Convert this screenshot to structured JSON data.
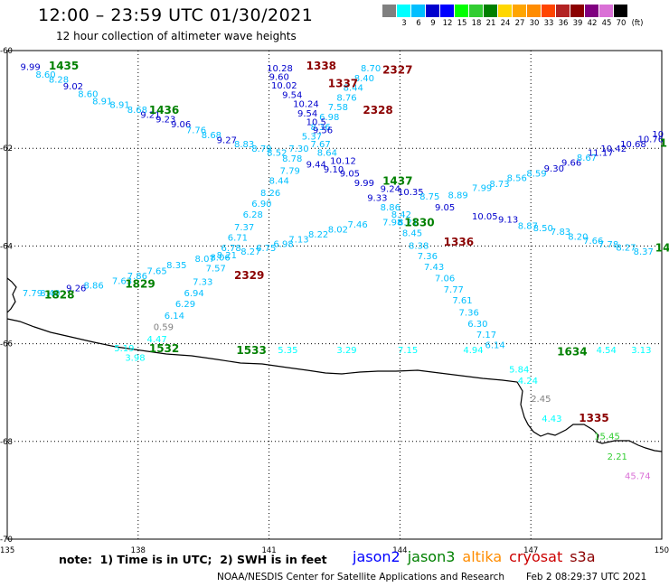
{
  "header": {
    "title": "12:00 – 23:59 UTC 01/30/2021",
    "subtitle": "12 hour collection of altimeter wave heights"
  },
  "legend": {
    "unit": "(ft)",
    "bins": [
      {
        "label": "",
        "color": "#808080"
      },
      {
        "label": "3",
        "color": "#00ffff"
      },
      {
        "label": "6",
        "color": "#00bfff"
      },
      {
        "label": "9",
        "color": "#0000cd"
      },
      {
        "label": "12",
        "color": "#0000ff"
      },
      {
        "label": "15",
        "color": "#00ff00"
      },
      {
        "label": "18",
        "color": "#32cd32"
      },
      {
        "label": "21",
        "color": "#008000"
      },
      {
        "label": "24",
        "color": "#ffd700"
      },
      {
        "label": "27",
        "color": "#ffa500"
      },
      {
        "label": "30",
        "color": "#ff8c00"
      },
      {
        "label": "33",
        "color": "#ff4500"
      },
      {
        "label": "36",
        "color": "#b22222"
      },
      {
        "label": "39",
        "color": "#8b0000"
      },
      {
        "label": "42",
        "color": "#800080"
      },
      {
        "label": "45",
        "color": "#da70d6"
      },
      {
        "label": "70",
        "color": "#000000"
      }
    ]
  },
  "map": {
    "lon_range": [
      135,
      150
    ],
    "lat_range": [
      -70,
      -60
    ],
    "lon_ticks": [
      "135",
      "138",
      "141",
      "144",
      "147",
      "150"
    ],
    "lat_ticks": [
      "-60",
      "-62",
      "-64",
      "-66",
      "-68",
      "-70"
    ]
  },
  "point_labels": {
    "text_rows": [
      {
        "text": "9.99",
        "color": "#0000cd",
        "lon": 135.3,
        "lat": -60.32
      },
      {
        "text": "8.60",
        "color": "#00bfff",
        "lon": 135.65,
        "lat": -60.48
      },
      {
        "text": "8.28",
        "color": "#00bfff",
        "lon": 135.95,
        "lat": -60.58
      },
      {
        "text": "9.02",
        "color": "#0000cd",
        "lon": 136.28,
        "lat": -60.72
      },
      {
        "text": "8.60",
        "color": "#00bfff",
        "lon": 136.62,
        "lat": -60.88
      },
      {
        "text": "8.91",
        "color": "#00bfff",
        "lon": 136.95,
        "lat": -61.03
      },
      {
        "text": "8.91",
        "color": "#00bfff",
        "lon": 137.35,
        "lat": -61.1
      },
      {
        "text": "8.68",
        "color": "#00bfff",
        "lon": 137.75,
        "lat": -61.2
      },
      {
        "text": "9.21",
        "color": "#0000cd",
        "lon": 138.05,
        "lat": -61.3
      },
      {
        "text": "9.23",
        "color": "#0000cd",
        "lon": 138.4,
        "lat": -61.4
      },
      {
        "text": "9.06",
        "color": "#0000cd",
        "lon": 138.75,
        "lat": -61.5
      },
      {
        "text": "7.76",
        "color": "#00bfff",
        "lon": 139.1,
        "lat": -61.62
      },
      {
        "text": "8.68",
        "color": "#00bfff",
        "lon": 139.45,
        "lat": -61.72
      },
      {
        "text": "9.27",
        "color": "#0000cd",
        "lon": 139.8,
        "lat": -61.82
      },
      {
        "text": "8.83",
        "color": "#00bfff",
        "lon": 140.2,
        "lat": -61.9
      },
      {
        "text": "8.79",
        "color": "#00bfff",
        "lon": 140.6,
        "lat": -62.0
      },
      {
        "text": "8.52",
        "color": "#00bfff",
        "lon": 140.95,
        "lat": -62.08
      },
      {
        "text": "8.78",
        "color": "#00bfff",
        "lon": 141.3,
        "lat": -62.2
      },
      {
        "text": "9.44",
        "color": "#0000cd",
        "lon": 141.85,
        "lat": -62.32
      },
      {
        "text": "9.10",
        "color": "#0000cd",
        "lon": 142.25,
        "lat": -62.42
      },
      {
        "text": "9.05",
        "color": "#0000cd",
        "lon": 142.62,
        "lat": -62.5
      },
      {
        "text": "9.99",
        "color": "#0000cd",
        "lon": 142.95,
        "lat": -62.7
      },
      {
        "text": "9.33",
        "color": "#0000cd",
        "lon": 143.25,
        "lat": -63.0
      },
      {
        "text": "8.86",
        "color": "#00bfff",
        "lon": 143.55,
        "lat": -63.2
      },
      {
        "text": "8.42",
        "color": "#00bfff",
        "lon": 143.8,
        "lat": -63.35
      },
      {
        "text": "7.98",
        "color": "#00bfff",
        "lon": 143.6,
        "lat": -63.5
      },
      {
        "text": "8.21",
        "color": "#00bfff",
        "lon": 143.95,
        "lat": -63.5
      },
      {
        "text": "8.45",
        "color": "#00bfff",
        "lon": 144.05,
        "lat": -63.72
      },
      {
        "text": "8.38",
        "color": "#00bfff",
        "lon": 144.2,
        "lat": -63.98
      },
      {
        "text": "7.36",
        "color": "#00bfff",
        "lon": 144.4,
        "lat": -64.2
      },
      {
        "text": "7.43",
        "color": "#00bfff",
        "lon": 144.55,
        "lat": -64.42
      },
      {
        "text": "7.06",
        "color": "#00bfff",
        "lon": 144.8,
        "lat": -64.65
      },
      {
        "text": "7.77",
        "color": "#00bfff",
        "lon": 145.0,
        "lat": -64.88
      },
      {
        "text": "7.61",
        "color": "#00bfff",
        "lon": 145.2,
        "lat": -65.1
      },
      {
        "text": "7.36",
        "color": "#00bfff",
        "lon": 145.35,
        "lat": -65.35
      },
      {
        "text": "6.30",
        "color": "#00bfff",
        "lon": 145.55,
        "lat": -65.58
      },
      {
        "text": "7.17",
        "color": "#00bfff",
        "lon": 145.75,
        "lat": -65.8
      },
      {
        "text": "6.14",
        "color": "#00bfff",
        "lon": 145.95,
        "lat": -66.02
      },
      {
        "text": "5.84",
        "color": "#00ffff",
        "lon": 146.5,
        "lat": -66.52
      },
      {
        "text": "4.24",
        "color": "#00ffff",
        "lon": 146.7,
        "lat": -66.75
      },
      {
        "text": "2.45",
        "color": "#808080",
        "lon": 147.0,
        "lat": -67.12
      },
      {
        "text": "4.43",
        "color": "#00ffff",
        "lon": 147.25,
        "lat": -67.52
      },
      {
        "text": "8.70",
        "color": "#00bfff",
        "lon": 143.1,
        "lat": -60.35
      },
      {
        "text": "8.40",
        "color": "#00bfff",
        "lon": 142.95,
        "lat": -60.55
      },
      {
        "text": "8.44",
        "color": "#00bfff",
        "lon": 142.7,
        "lat": -60.75
      },
      {
        "text": "8.76",
        "color": "#00bfff",
        "lon": 142.55,
        "lat": -60.95
      },
      {
        "text": "7.58",
        "color": "#00bfff",
        "lon": 142.35,
        "lat": -61.15
      },
      {
        "text": "6.98",
        "color": "#00bfff",
        "lon": 142.15,
        "lat": -61.35
      },
      {
        "text": "8.36",
        "color": "#00bfff",
        "lon": 141.95,
        "lat": -61.55
      },
      {
        "text": "5.37",
        "color": "#00bfff",
        "lon": 141.75,
        "lat": -61.75
      },
      {
        "text": "7.67",
        "color": "#00bfff",
        "lon": 141.95,
        "lat": -61.9
      },
      {
        "text": "7.30",
        "color": "#00bfff",
        "lon": 141.45,
        "lat": -62.0
      },
      {
        "text": "8.64",
        "color": "#00bfff",
        "lon": 142.1,
        "lat": -62.08
      },
      {
        "text": "7.79",
        "color": "#00bfff",
        "lon": 141.25,
        "lat": -62.45
      },
      {
        "text": "8.44",
        "color": "#00bfff",
        "lon": 141.0,
        "lat": -62.65
      },
      {
        "text": "8.26",
        "color": "#00bfff",
        "lon": 140.8,
        "lat": -62.9
      },
      {
        "text": "6.90",
        "color": "#00bfff",
        "lon": 140.6,
        "lat": -63.12
      },
      {
        "text": "6.28",
        "color": "#00bfff",
        "lon": 140.4,
        "lat": -63.35
      },
      {
        "text": "7.37",
        "color": "#00bfff",
        "lon": 140.2,
        "lat": -63.6
      },
      {
        "text": "6.71",
        "color": "#00bfff",
        "lon": 140.05,
        "lat": -63.82
      },
      {
        "text": "6.78",
        "color": "#00bfff",
        "lon": 139.9,
        "lat": -64.03
      },
      {
        "text": "8.06",
        "color": "#00bfff",
        "lon": 139.65,
        "lat": -64.22
      },
      {
        "text": "7.57",
        "color": "#00bfff",
        "lon": 139.55,
        "lat": -64.45
      },
      {
        "text": "7.33",
        "color": "#00bfff",
        "lon": 139.25,
        "lat": -64.72
      },
      {
        "text": "6.94",
        "color": "#00bfff",
        "lon": 139.05,
        "lat": -64.95
      },
      {
        "text": "6.29",
        "color": "#00bfff",
        "lon": 138.85,
        "lat": -65.18
      },
      {
        "text": "6.14",
        "color": "#00bfff",
        "lon": 138.6,
        "lat": -65.42
      },
      {
        "text": "0.59",
        "color": "#808080",
        "lon": 138.35,
        "lat": -65.65
      },
      {
        "text": "4.47",
        "color": "#00ffff",
        "lon": 138.2,
        "lat": -65.9
      },
      {
        "text": "3.98",
        "color": "#00ffff",
        "lon": 137.7,
        "lat": -66.28
      },
      {
        "text": "10.28",
        "color": "#0000cd",
        "lon": 140.95,
        "lat": -60.35
      },
      {
        "text": "9.60",
        "color": "#0000cd",
        "lon": 141.0,
        "lat": -60.53
      },
      {
        "text": "10.02",
        "color": "#0000cd",
        "lon": 141.05,
        "lat": -60.7
      },
      {
        "text": "9.54",
        "color": "#0000cd",
        "lon": 141.3,
        "lat": -60.9
      },
      {
        "text": "10.24",
        "color": "#0000cd",
        "lon": 141.55,
        "lat": -61.08
      },
      {
        "text": "9.54",
        "color": "#0000cd",
        "lon": 141.65,
        "lat": -61.28
      },
      {
        "text": "10.5",
        "color": "#0000cd",
        "lon": 141.85,
        "lat": -61.45
      },
      {
        "text": "9.56",
        "color": "#0000cd",
        "lon": 142.0,
        "lat": -61.62
      },
      {
        "text": "10.12",
        "color": "#0000cd",
        "lon": 142.4,
        "lat": -62.25
      },
      {
        "text": "10.35",
        "color": "#0000cd",
        "lon": 143.95,
        "lat": -62.88
      },
      {
        "text": "9.05",
        "color": "#0000cd",
        "lon": 144.8,
        "lat": -63.2
      },
      {
        "text": "10.05",
        "color": "#0000cd",
        "lon": 145.65,
        "lat": -63.38
      },
      {
        "text": "9.13",
        "color": "#0000cd",
        "lon": 146.25,
        "lat": -63.45
      },
      {
        "text": "8.87",
        "color": "#00bfff",
        "lon": 146.7,
        "lat": -63.58
      },
      {
        "text": "8.50",
        "color": "#00bfff",
        "lon": 147.05,
        "lat": -63.62
      },
      {
        "text": "7.83",
        "color": "#00bfff",
        "lon": 147.45,
        "lat": -63.7
      },
      {
        "text": "8.20",
        "color": "#00bfff",
        "lon": 147.85,
        "lat": -63.8
      },
      {
        "text": "7.66",
        "color": "#00bfff",
        "lon": 148.2,
        "lat": -63.88
      },
      {
        "text": "7.78",
        "color": "#00bfff",
        "lon": 148.55,
        "lat": -63.96
      },
      {
        "text": "8.27",
        "color": "#00bfff",
        "lon": 148.95,
        "lat": -64.02
      },
      {
        "text": "8.37",
        "color": "#00bfff",
        "lon": 149.35,
        "lat": -64.1
      },
      {
        "text": "9.24",
        "color": "#0000cd",
        "lon": 143.55,
        "lat": -62.82
      },
      {
        "text": "8.75",
        "color": "#00bfff",
        "lon": 144.45,
        "lat": -62.98
      },
      {
        "text": "8.89",
        "color": "#00bfff",
        "lon": 145.1,
        "lat": -62.95
      },
      {
        "text": "7.99",
        "color": "#00bfff",
        "lon": 145.65,
        "lat": -62.8
      },
      {
        "text": "8.73",
        "color": "#00bfff",
        "lon": 146.05,
        "lat": -62.72
      },
      {
        "text": "8.56",
        "color": "#00bfff",
        "lon": 146.45,
        "lat": -62.6
      },
      {
        "text": "8.59",
        "color": "#00bfff",
        "lon": 146.9,
        "lat": -62.5
      },
      {
        "text": "9.30",
        "color": "#0000cd",
        "lon": 147.3,
        "lat": -62.4
      },
      {
        "text": "9.66",
        "color": "#0000cd",
        "lon": 147.7,
        "lat": -62.28
      },
      {
        "text": "8.67",
        "color": "#00bfff",
        "lon": 148.05,
        "lat": -62.18
      },
      {
        "text": "11.17",
        "color": "#0000cd",
        "lon": 148.3,
        "lat": -62.08
      },
      {
        "text": "10.42",
        "color": "#0000cd",
        "lon": 148.6,
        "lat": -62.0
      },
      {
        "text": "10.68",
        "color": "#0000cd",
        "lon": 149.05,
        "lat": -61.9
      },
      {
        "text": "10.76",
        "color": "#0000cd",
        "lon": 149.45,
        "lat": -61.8
      },
      {
        "text": "10",
        "color": "#0000cd",
        "lon": 149.78,
        "lat": -61.7
      },
      {
        "text": "7.13",
        "color": "#00bfff",
        "lon": 141.45,
        "lat": -63.85
      },
      {
        "text": "8.22",
        "color": "#00bfff",
        "lon": 141.9,
        "lat": -63.75
      },
      {
        "text": "8.02",
        "color": "#00bfff",
        "lon": 142.35,
        "lat": -63.65
      },
      {
        "text": "7.46",
        "color": "#00bfff",
        "lon": 142.8,
        "lat": -63.55
      },
      {
        "text": "6.98",
        "color": "#00bfff",
        "lon": 141.1,
        "lat": -63.95
      },
      {
        "text": "6.75",
        "color": "#00bfff",
        "lon": 140.7,
        "lat": -64.03
      },
      {
        "text": "8.27",
        "color": "#00bfff",
        "lon": 140.35,
        "lat": -64.1
      },
      {
        "text": "8.21",
        "color": "#00bfff",
        "lon": 139.8,
        "lat": -64.18
      },
      {
        "text": "8.07",
        "color": "#00bfff",
        "lon": 139.3,
        "lat": -64.25
      },
      {
        "text": "8.35",
        "color": "#00bfff",
        "lon": 138.65,
        "lat": -64.38
      },
      {
        "text": "7.65",
        "color": "#00bfff",
        "lon": 138.2,
        "lat": -64.5
      },
      {
        "text": "7.86",
        "color": "#00bfff",
        "lon": 137.75,
        "lat": -64.6
      },
      {
        "text": "7.63",
        "color": "#00bfff",
        "lon": 137.4,
        "lat": -64.7
      },
      {
        "text": "8.86",
        "color": "#00bfff",
        "lon": 136.75,
        "lat": -64.8
      },
      {
        "text": "9.26",
        "color": "#0000cd",
        "lon": 136.35,
        "lat": -64.85
      },
      {
        "text": "7.79",
        "color": "#00bfff",
        "lon": 135.35,
        "lat": -64.95
      },
      {
        "text": "8.40",
        "color": "#00bfff",
        "lon": 135.75,
        "lat": -64.95
      },
      {
        "text": "5.19",
        "color": "#00ffff",
        "lon": 137.45,
        "lat": -66.08
      },
      {
        "text": "5.35",
        "color": "#00ffff",
        "lon": 141.2,
        "lat": -66.12
      },
      {
        "text": "3.29",
        "color": "#00ffff",
        "lon": 142.55,
        "lat": -66.12
      },
      {
        "text": "7.15",
        "color": "#00ffff",
        "lon": 143.95,
        "lat": -66.12
      },
      {
        "text": "4.94",
        "color": "#00ffff",
        "lon": 145.45,
        "lat": -66.12
      },
      {
        "text": "4.54",
        "color": "#00ffff",
        "lon": 148.5,
        "lat": -66.12
      },
      {
        "text": "3.13",
        "color": "#00ffff",
        "lon": 149.3,
        "lat": -66.12
      },
      {
        "text": "15.45",
        "color": "#32cd32",
        "lon": 148.45,
        "lat": -67.88
      },
      {
        "text": "2.21",
        "color": "#32cd32",
        "lon": 148.75,
        "lat": -68.3
      },
      {
        "text": "45.74",
        "color": "#da70d6",
        "lon": 149.15,
        "lat": -68.7
      }
    ],
    "pass_ids": [
      {
        "text": "1435",
        "color": "#008000",
        "lon": 135.95,
        "lat": -60.3
      },
      {
        "text": "1436",
        "color": "#008000",
        "lon": 138.25,
        "lat": -61.2
      },
      {
        "text": "1338",
        "color": "#8b0000",
        "lon": 141.85,
        "lat": -60.3
      },
      {
        "text": "1337",
        "color": "#8b0000",
        "lon": 142.35,
        "lat": -60.66
      },
      {
        "text": "2327",
        "color": "#8b0000",
        "lon": 143.6,
        "lat": -60.38
      },
      {
        "text": "2328",
        "color": "#8b0000",
        "lon": 143.15,
        "lat": -61.2
      },
      {
        "text": "1437",
        "color": "#008000",
        "lon": 143.6,
        "lat": -62.65
      },
      {
        "text": "1830",
        "color": "#008000",
        "lon": 144.1,
        "lat": -63.5
      },
      {
        "text": "1336",
        "color": "#8b0000",
        "lon": 145.0,
        "lat": -63.9
      },
      {
        "text": "2329",
        "color": "#8b0000",
        "lon": 140.2,
        "lat": -64.58
      },
      {
        "text": "1829",
        "color": "#008000",
        "lon": 137.7,
        "lat": -64.76
      },
      {
        "text": "1828",
        "color": "#008000",
        "lon": 135.85,
        "lat": -64.98
      },
      {
        "text": "1532",
        "color": "#008000",
        "lon": 138.25,
        "lat": -66.08
      },
      {
        "text": "1533",
        "color": "#008000",
        "lon": 140.25,
        "lat": -66.12
      },
      {
        "text": "1634",
        "color": "#008000",
        "lon": 147.6,
        "lat": -66.15
      },
      {
        "text": "1335",
        "color": "#8b0000",
        "lon": 148.1,
        "lat": -67.5
      },
      {
        "text": "14",
        "color": "#008000",
        "lon": 149.85,
        "lat": -64.02
      },
      {
        "text": "1",
        "color": "#008000",
        "lon": 149.95,
        "lat": -61.88
      }
    ]
  },
  "note": "note:  1) Time is in UTC;  2) SWH is in feet",
  "missions": [
    {
      "name": "jason2",
      "color": "#0000ff"
    },
    {
      "name": "jason3",
      "color": "#008000"
    },
    {
      "name": "altika",
      "color": "#ff8c00"
    },
    {
      "name": "cryosat",
      "color": "#cc0000"
    },
    {
      "name": "s3a",
      "color": "#8b0000"
    }
  ],
  "footer": {
    "org": "NOAA/NESDIS Center for Satellite Applications and Research",
    "timestamp": "Feb  2 08:29:37 UTC 2021"
  }
}
